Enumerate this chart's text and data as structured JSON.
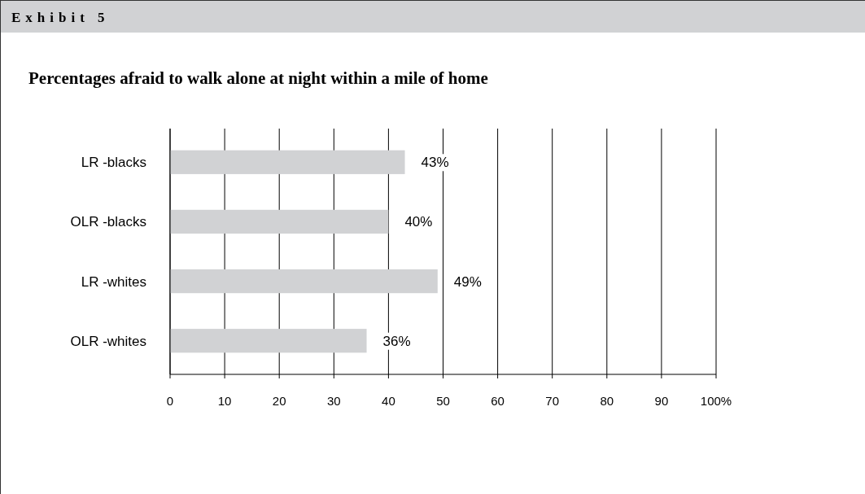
{
  "chart_data": {
    "type": "bar",
    "orientation": "horizontal",
    "title": "Percentages afraid to walk alone at night within a mile of home",
    "annotations": [
      "Exhibit 5"
    ],
    "categories": [
      "LR -blacks",
      "OLR -blacks",
      "LR -whites",
      "OLR -whites"
    ],
    "values": [
      43,
      40,
      49,
      36
    ],
    "value_labels": [
      "43%",
      "40%",
      "49%",
      "36%"
    ],
    "color": "#d1d2d4",
    "xlim": [
      0,
      100
    ],
    "xticks": [
      0,
      10,
      20,
      30,
      40,
      50,
      60,
      70,
      80,
      90,
      {
        "value": 100,
        "label": "100%"
      }
    ],
    "grid": "x"
  }
}
